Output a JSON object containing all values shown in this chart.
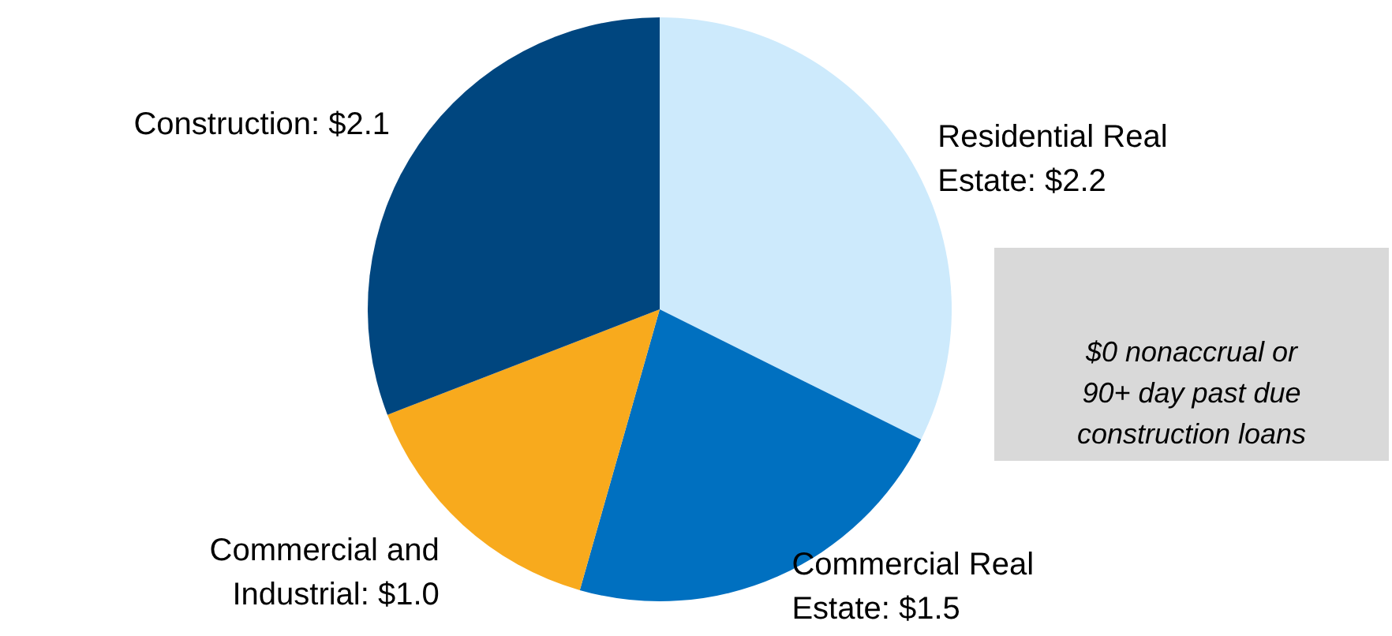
{
  "chart_data": {
    "type": "pie",
    "categories": [
      "Residential Real Estate",
      "Commercial Real Estate",
      "Commercial and Industrial",
      "Construction"
    ],
    "values": [
      2.2,
      1.5,
      1.0,
      2.1
    ],
    "value_labels": [
      "$2.2",
      "$1.5",
      "$1.0",
      "$2.1"
    ],
    "colors": [
      "#cdeafc",
      "#0070c0",
      "#f8aa1d",
      "#00467f"
    ],
    "annotations": [
      "$0 nonaccrual or 90+ day past due construction loans"
    ]
  }
}
